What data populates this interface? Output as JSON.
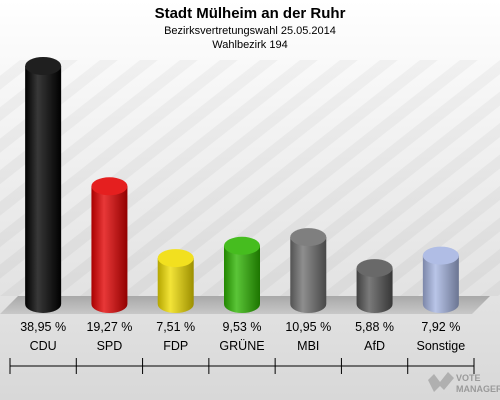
{
  "chart_data": {
    "type": "bar",
    "title": "Stadt Mülheim an der Ruhr",
    "subtitle_line1": "Bezirksvertretungswahl 25.05.2014",
    "subtitle_line2": "Wahlbezirk 194",
    "categories": [
      "CDU",
      "SPD",
      "FDP",
      "GRÜNE",
      "MBI",
      "AfD",
      "Sonstige"
    ],
    "values": [
      38.95,
      19.27,
      7.51,
      9.53,
      10.95,
      5.88,
      7.92
    ],
    "value_labels": [
      "38,95 %",
      "19,27 %",
      "7,51 %",
      "9,53 %",
      "10,95 %",
      "5,88 %",
      "7,92 %"
    ],
    "colors": [
      "#000000",
      "#e10000",
      "#f0dc00",
      "#2db400",
      "#6e6e6e",
      "#555555",
      "#a5b4e1"
    ],
    "ylim": [
      0,
      38.95
    ],
    "grid": false,
    "legend": "none"
  },
  "watermark": {
    "line1": "VOTE",
    "line2": "MANAGER",
    "icon": "vote-manager-logo-icon"
  }
}
